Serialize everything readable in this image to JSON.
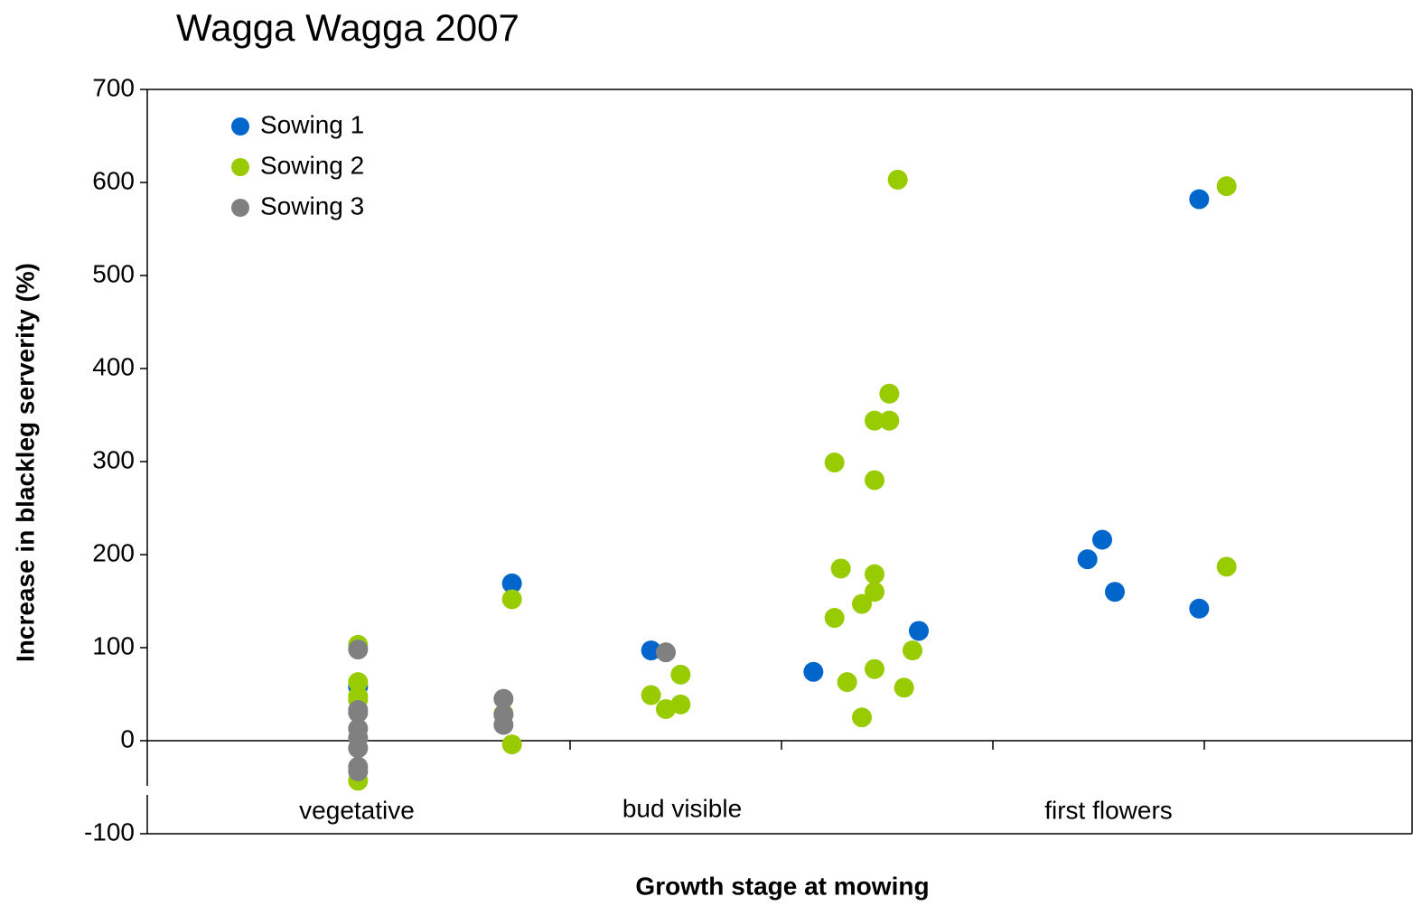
{
  "chart_data": {
    "type": "scatter",
    "title": "Wagga Wagga 2007",
    "xlabel": "Growth stage at mowing",
    "ylabel": "Increase in blackleg serverity (%)",
    "annotations": [
      "vegetative",
      "bud visible",
      "first flowers"
    ],
    "xlim": [
      0,
      6
    ],
    "ylim": [
      -100,
      700
    ],
    "yticks": [
      -100,
      0,
      100,
      200,
      300,
      400,
      500,
      600,
      700
    ],
    "legend": "top-left",
    "series": [
      {
        "name": "Sowing 1",
        "color": "#0066cc",
        "x": [
          1.0,
          1.73,
          2.39,
          3.16,
          3.66,
          4.46,
          4.53,
          4.59,
          4.99,
          4.99
        ],
        "values": [
          58,
          169,
          97,
          74,
          118,
          195,
          216,
          160,
          582,
          142
        ]
      },
      {
        "name": "Sowing 2",
        "color": "#99cc00",
        "x": [
          1.0,
          1.0,
          1.0,
          1.0,
          1.0,
          1.69,
          1.73,
          1.73,
          2.39,
          2.46,
          2.53,
          2.53,
          3.56,
          3.26,
          3.52,
          3.45,
          3.52,
          3.45,
          3.29,
          3.45,
          3.45,
          3.39,
          3.26,
          3.63,
          3.32,
          3.45,
          3.59,
          3.39,
          5.12,
          5.12
        ],
        "values": [
          103,
          63,
          48,
          44,
          -43,
          29,
          -4,
          152,
          49,
          34,
          39,
          71,
          603,
          299,
          373,
          344,
          344,
          280,
          185,
          179,
          160,
          147,
          132,
          97,
          63,
          77,
          57,
          25,
          596,
          187
        ]
      },
      {
        "name": "Sowing 3",
        "color": "#808080",
        "x": [
          1.0,
          1.0,
          1.0,
          1.0,
          1.0,
          1.0,
          1.0,
          1.0,
          1.69,
          1.69,
          1.69,
          2.46
        ],
        "values": [
          98,
          33,
          30,
          13,
          3,
          -8,
          -28,
          -33,
          45,
          28,
          17,
          95
        ]
      }
    ]
  }
}
